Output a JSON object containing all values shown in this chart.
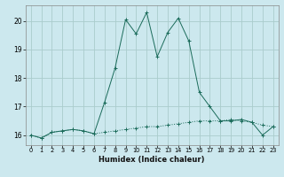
{
  "xlabel": "Humidex (Indice chaleur)",
  "background_color": "#cce8ee",
  "grid_color": "#aacccc",
  "line_color": "#1a6b5a",
  "xlim": [
    -0.5,
    23.5
  ],
  "ylim": [
    15.65,
    20.55
  ],
  "yticks": [
    16,
    17,
    18,
    19,
    20
  ],
  "xticks": [
    0,
    1,
    2,
    3,
    4,
    5,
    6,
    7,
    8,
    9,
    10,
    11,
    12,
    13,
    14,
    15,
    16,
    17,
    18,
    19,
    20,
    21,
    22,
    23
  ],
  "series1_x": [
    0,
    1,
    2,
    3,
    4,
    5,
    6,
    7,
    8,
    9,
    10,
    11,
    12,
    13,
    14,
    15,
    16,
    17,
    18,
    19,
    20,
    21,
    22,
    23
  ],
  "series1_y": [
    16.0,
    15.9,
    16.1,
    16.15,
    16.2,
    16.15,
    16.05,
    16.1,
    16.15,
    16.2,
    16.25,
    16.3,
    16.3,
    16.35,
    16.4,
    16.45,
    16.5,
    16.5,
    16.5,
    16.55,
    16.5,
    16.45,
    16.35,
    16.3
  ],
  "series2_x": [
    0,
    1,
    2,
    3,
    4,
    5,
    6,
    7,
    8,
    9,
    10,
    11,
    12,
    13,
    14,
    15,
    16,
    17,
    18,
    19,
    20,
    21,
    22,
    23
  ],
  "series2_y": [
    16.0,
    15.9,
    16.1,
    16.15,
    16.2,
    16.15,
    16.05,
    17.15,
    18.35,
    20.05,
    19.55,
    20.3,
    18.75,
    19.6,
    20.1,
    19.3,
    17.5,
    17.0,
    16.5,
    16.5,
    16.55,
    16.45,
    16.0,
    16.3
  ]
}
